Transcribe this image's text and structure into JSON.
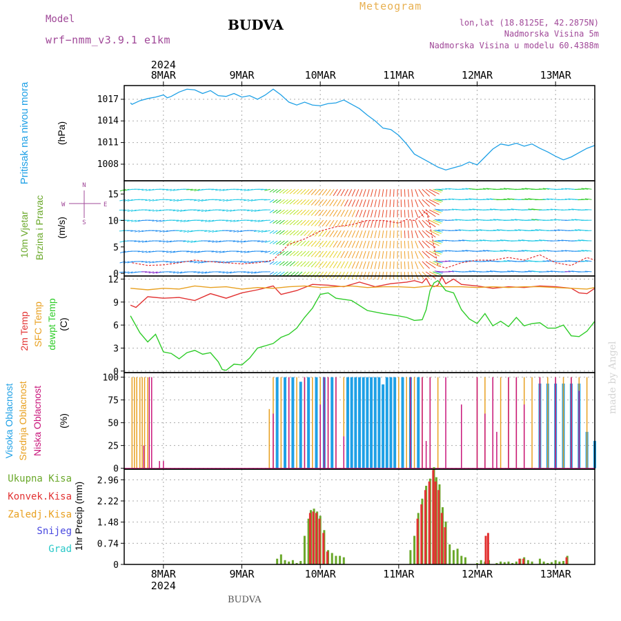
{
  "header": {
    "model_label": "Model",
    "model_name": "wrf−nmm_v3.9.1 e1km",
    "station": "BUDVA",
    "product": "Meteogram",
    "lonlat": "lon,lat (18.8125E, 42.2875N)",
    "altitude": "Nadmorska Visina 5m",
    "model_altitude": "Nadmorska Visina u modelu 60.4388m",
    "watermark": "made by Angel",
    "footer_station": "BUDVA"
  },
  "colors": {
    "pressure": "#1ea0e6",
    "temp2m": "#e23232",
    "sfc_temp": "#e8a020",
    "dewpoint": "#2ecc28",
    "high_cloud": "#1ea0e6",
    "mid_cloud": "#e8a020",
    "low_cloud": "#c8147a",
    "total_precip": "#6aa82a",
    "conv_precip": "#e23232",
    "snow": "#4848e0",
    "grad": "#28c8c8",
    "title": "#a04898",
    "product": "#e8b050"
  },
  "time_axis": {
    "day_labels": [
      "8MAR",
      "9MAR",
      "10MAR",
      "11MAR",
      "12MAR",
      "13MAR"
    ],
    "year": "2024"
  },
  "chart_data": [
    {
      "id": "pressure",
      "type": "line",
      "ylabel": [
        "Pritisak na nivou mora",
        "(hPa)"
      ],
      "yticks": [
        1008,
        1011,
        1014,
        1017
      ],
      "ylim": [
        1005.7,
        1018.9
      ],
      "series": [
        {
          "x": [
            7.58,
            7.6,
            7.7,
            7.8,
            7.9,
            8.0,
            8.05,
            8.1,
            8.2,
            8.3,
            8.4,
            8.5,
            8.6,
            8.7,
            8.8,
            8.9,
            9.0,
            9.1,
            9.2,
            9.3,
            9.4,
            9.5,
            9.6,
            9.7,
            9.8,
            9.9,
            10.0,
            10.1,
            10.2,
            10.3,
            10.4,
            10.5,
            10.6,
            10.7,
            10.8,
            10.9,
            11.0,
            11.1,
            11.2,
            11.3,
            11.4,
            11.5,
            11.6,
            11.7,
            11.8,
            11.9,
            12.0,
            12.1,
            12.2,
            12.3,
            12.4,
            12.5,
            12.6,
            12.7,
            12.8,
            12.9,
            13.0,
            13.1,
            13.2,
            13.3,
            13.4,
            13.5
          ],
          "y": [
            1016.5,
            1016.3,
            1016.8,
            1017.1,
            1017.3,
            1017.6,
            1017.2,
            1017.4,
            1018.0,
            1018.4,
            1018.3,
            1017.8,
            1018.2,
            1017.5,
            1017.4,
            1017.8,
            1017.3,
            1017.5,
            1017.0,
            1017.6,
            1018.4,
            1017.6,
            1016.6,
            1016.2,
            1016.6,
            1016.2,
            1016.1,
            1016.4,
            1016.5,
            1016.9,
            1016.3,
            1015.7,
            1014.8,
            1014.0,
            1013.0,
            1012.8,
            1012.0,
            1010.8,
            1009.4,
            1008.8,
            1008.2,
            1007.6,
            1007.2,
            1007.5,
            1007.8,
            1008.3,
            1007.9,
            1009.0,
            1010.1,
            1010.8,
            1010.6,
            1010.9,
            1010.5,
            1010.8,
            1010.2,
            1009.7,
            1009.1,
            1008.6,
            1009.0,
            1009.6,
            1010.2,
            1010.6
          ]
        }
      ]
    },
    {
      "id": "wind",
      "type": "barbs",
      "ylabel": [
        "10m Vjetar",
        "Brzina i Pravac",
        "(m/s)"
      ],
      "compass": [
        "N",
        "W",
        "E",
        "S"
      ],
      "yticks": [
        0,
        5,
        10,
        15
      ],
      "ylim": [
        -0.5,
        17.5
      ],
      "wind_speed": {
        "x": [
          7.6,
          7.8,
          8.0,
          8.2,
          8.4,
          8.6,
          8.8,
          9.0,
          9.2,
          9.4,
          9.5,
          9.6,
          9.8,
          10.0,
          10.2,
          10.4,
          10.6,
          10.8,
          11.0,
          11.1,
          11.2,
          11.3,
          11.35,
          11.4,
          11.45,
          11.5,
          11.6,
          11.8,
          12.0,
          12.2,
          12.4,
          12.6,
          12.8,
          13.0,
          13.2,
          13.4,
          13.5
        ],
        "y": [
          2.0,
          1.5,
          1.6,
          2.0,
          2.5,
          2.2,
          2.0,
          1.8,
          2.0,
          2.5,
          4.0,
          5.5,
          6.5,
          8.0,
          8.8,
          9.2,
          10.0,
          10.0,
          9.5,
          10.2,
          10.0,
          11.0,
          12.0,
          9.0,
          5.0,
          1.5,
          1.0,
          2.0,
          2.5,
          2.5,
          3.0,
          2.5,
          3.5,
          2.0,
          1.5,
          3.0,
          2.5
        ]
      }
    },
    {
      "id": "temperature",
      "type": "line",
      "ylabel": [
        "2m Temp",
        "SFC Temp",
        "dewpt Temp",
        "(C)"
      ],
      "yticks": [
        0,
        3,
        6,
        9,
        12
      ],
      "ylim": [
        -0.2,
        12.4
      ],
      "series": [
        {
          "key": "temp2m",
          "x": [
            7.58,
            7.65,
            7.8,
            8.0,
            8.2,
            8.4,
            8.6,
            8.8,
            9.0,
            9.2,
            9.4,
            9.5,
            9.7,
            9.9,
            10.1,
            10.3,
            10.5,
            10.7,
            10.9,
            11.1,
            11.2,
            11.3,
            11.35,
            11.4,
            11.45,
            11.5,
            11.55,
            11.6,
            11.7,
            11.8,
            12.0,
            12.2,
            12.4,
            12.6,
            12.8,
            13.0,
            13.2,
            13.3,
            13.4,
            13.5
          ],
          "y": [
            8.6,
            8.3,
            9.7,
            9.5,
            9.6,
            9.2,
            10.1,
            9.5,
            10.2,
            10.6,
            11.1,
            10.0,
            10.5,
            11.3,
            11.2,
            11.0,
            11.6,
            11.0,
            11.4,
            11.6,
            11.8,
            11.5,
            12.1,
            11.2,
            11.0,
            11.2,
            12.3,
            11.4,
            12.0,
            11.3,
            11.1,
            10.8,
            11.0,
            10.9,
            11.1,
            11.0,
            10.8,
            10.2,
            10.1,
            10.8
          ]
        },
        {
          "key": "sfc_temp",
          "x": [
            7.58,
            7.8,
            8.0,
            8.2,
            8.4,
            8.6,
            8.8,
            9.0,
            9.2,
            9.4,
            9.6,
            9.8,
            10.0,
            10.2,
            10.4,
            10.6,
            10.8,
            11.0,
            11.2,
            11.4,
            11.6,
            11.8,
            12.0,
            12.2,
            12.4,
            12.6,
            12.8,
            13.0,
            13.2,
            13.4,
            13.5
          ],
          "y": [
            10.8,
            10.6,
            10.8,
            10.7,
            11.1,
            10.9,
            11.0,
            10.7,
            10.9,
            10.8,
            11.0,
            11.1,
            10.9,
            11.0,
            11.1,
            10.9,
            11.0,
            11.0,
            10.9,
            11.1,
            11.0,
            11.0,
            10.9,
            11.0,
            10.9,
            11.0,
            11.0,
            10.9,
            10.8,
            10.7,
            10.9
          ]
        },
        {
          "key": "dewpoint",
          "x": [
            7.58,
            7.7,
            7.8,
            7.9,
            8.0,
            8.1,
            8.2,
            8.3,
            8.4,
            8.5,
            8.6,
            8.7,
            8.75,
            8.8,
            8.9,
            9.0,
            9.1,
            9.2,
            9.3,
            9.4,
            9.5,
            9.6,
            9.7,
            9.8,
            9.9,
            10.0,
            10.1,
            10.2,
            10.4,
            10.6,
            10.8,
            11.0,
            11.1,
            11.2,
            11.3,
            11.35,
            11.4,
            11.45,
            11.5,
            11.6,
            11.7,
            11.8,
            11.9,
            12.0,
            12.1,
            12.2,
            12.3,
            12.4,
            12.5,
            12.6,
            12.7,
            12.8,
            12.9,
            13.0,
            13.1,
            13.2,
            13.3,
            13.4,
            13.5
          ],
          "y": [
            7.2,
            5.0,
            3.8,
            4.8,
            2.5,
            2.3,
            1.6,
            2.4,
            2.7,
            2.2,
            2.4,
            1.2,
            0.2,
            0.1,
            0.9,
            0.8,
            1.7,
            3.0,
            3.3,
            3.6,
            4.4,
            4.8,
            5.6,
            7.0,
            8.2,
            10.0,
            10.2,
            9.5,
            9.2,
            7.9,
            7.5,
            7.2,
            7.0,
            6.6,
            6.7,
            8.0,
            10.5,
            11.5,
            11.8,
            10.5,
            10.2,
            8.0,
            6.8,
            6.2,
            7.5,
            5.9,
            6.5,
            5.8,
            7.0,
            5.9,
            6.2,
            6.3,
            5.6,
            5.6,
            6.0,
            4.6,
            4.5,
            5.2,
            6.5
          ]
        }
      ]
    },
    {
      "id": "cloud",
      "type": "bar",
      "ylabel": [
        "Visoka Oblacnost",
        "Srednja Oblacnost",
        "Niska Oblacnost",
        "(%)"
      ],
      "yticks": [
        0,
        25,
        50,
        75,
        100
      ],
      "ylim": [
        -1,
        105
      ],
      "series": [
        {
          "key": "high",
          "name": "Visoka Oblacnost",
          "x": [
            9.45,
            9.55,
            9.65,
            9.75,
            9.85,
            9.95,
            10.05,
            10.15,
            10.35,
            10.4,
            10.45,
            10.5,
            10.55,
            10.6,
            10.65,
            10.7,
            10.75,
            10.8,
            10.85,
            10.9,
            10.95,
            11.05,
            11.15,
            11.25,
            12.8,
            12.9,
            13.0,
            13.1,
            13.2,
            13.3,
            13.4,
            13.5
          ],
          "y": [
            100,
            100,
            100,
            95,
            100,
            100,
            100,
            100,
            100,
            100,
            100,
            100,
            100,
            100,
            100,
            100,
            100,
            92,
            100,
            100,
            100,
            100,
            100,
            100,
            93,
            93,
            93,
            93,
            93,
            93,
            40,
            30
          ]
        },
        {
          "key": "mid",
          "name": "Srednja Oblacnost",
          "x": [
            7.6,
            7.63,
            7.66,
            7.7,
            7.73,
            7.76,
            7.8,
            9.35,
            9.4,
            9.5,
            9.6,
            9.7,
            9.8,
            9.9,
            10.0,
            10.1,
            10.2,
            10.3,
            11.0,
            11.1,
            11.2,
            11.3,
            11.4,
            11.5,
            12.0,
            12.1,
            12.2,
            12.3,
            12.4,
            12.5,
            12.6,
            12.7,
            12.8,
            12.9,
            13.0,
            13.1,
            13.2,
            13.3,
            13.4
          ],
          "y": [
            100,
            100,
            100,
            100,
            100,
            100,
            100,
            65,
            100,
            100,
            100,
            100,
            100,
            100,
            100,
            100,
            100,
            100,
            100,
            100,
            100,
            100,
            100,
            100,
            100,
            100,
            100,
            100,
            100,
            100,
            100,
            100,
            100,
            100,
            100,
            100,
            100,
            100,
            100
          ]
        },
        {
          "key": "low",
          "name": "Niska Oblacnost",
          "x": [
            7.75,
            7.82,
            7.85,
            7.95,
            8.0,
            9.4,
            9.6,
            9.8,
            10.0,
            10.05,
            10.1,
            10.2,
            10.3,
            11.15,
            11.3,
            11.35,
            11.4,
            11.6,
            11.8,
            12.0,
            12.1,
            12.2,
            12.25,
            12.4,
            12.5,
            12.6,
            12.8,
            13.0,
            13.2,
            13.3
          ],
          "y": [
            25,
            100,
            100,
            8,
            8,
            60,
            100,
            100,
            70,
            100,
            100,
            100,
            35,
            100,
            100,
            30,
            100,
            100,
            70,
            100,
            60,
            100,
            40,
            100,
            100,
            70,
            100,
            100,
            100,
            85
          ]
        }
      ]
    },
    {
      "id": "precip",
      "type": "bar",
      "ylabel": [
        "1hr Precip (mm)"
      ],
      "legend": [
        "Ukupna Kisa",
        "Konvek.Kisa",
        "Zaledj.Kisa",
        "Snijeg",
        "Grad"
      ],
      "yticks": [
        0,
        0.74,
        1.48,
        2.22,
        2.96
      ],
      "ylim": [
        0,
        3.33
      ],
      "series": [
        {
          "key": "total",
          "name": "Ukupna Kisa",
          "x": [
            9.45,
            9.5,
            9.55,
            9.6,
            9.65,
            9.7,
            9.75,
            9.8,
            9.85,
            9.88,
            9.92,
            9.96,
            10.0,
            10.05,
            10.1,
            10.15,
            10.2,
            10.25,
            10.3,
            11.15,
            11.2,
            11.25,
            11.3,
            11.35,
            11.4,
            11.45,
            11.48,
            11.52,
            11.56,
            11.6,
            11.65,
            11.7,
            11.75,
            11.8,
            11.85,
            12.0,
            12.05,
            12.1,
            12.15,
            12.25,
            12.3,
            12.35,
            12.4,
            12.45,
            12.5,
            12.55,
            12.6,
            12.65,
            12.7,
            12.8,
            12.85,
            12.9,
            12.95,
            13.0,
            13.05,
            13.1,
            13.15
          ],
          "y": [
            0.2,
            0.35,
            0.15,
            0.1,
            0.15,
            0.05,
            0.12,
            1.0,
            1.6,
            1.9,
            1.95,
            1.85,
            1.7,
            1.2,
            0.5,
            0.4,
            0.3,
            0.3,
            0.25,
            0.5,
            1.0,
            1.8,
            2.3,
            2.75,
            3.0,
            3.4,
            3.05,
            2.8,
            2.0,
            1.5,
            0.7,
            0.5,
            0.55,
            0.3,
            0.25,
            0.05,
            0.15,
            0.1,
            0.15,
            0.05,
            0.1,
            0.08,
            0.1,
            0.05,
            0.1,
            0.2,
            0.25,
            0.15,
            0.1,
            0.2,
            0.1,
            0.05,
            0.08,
            0.15,
            0.1,
            0.12,
            0.3
          ]
        },
        {
          "key": "conv",
          "name": "Konvek.Kisa",
          "x": [
            9.87,
            9.91,
            9.95,
            9.99,
            10.04,
            10.09,
            11.24,
            11.29,
            11.34,
            11.39,
            11.44,
            11.47,
            11.51,
            11.55,
            11.59,
            12.11,
            12.14,
            12.54,
            12.59,
            13.14
          ],
          "y": [
            1.8,
            1.85,
            1.8,
            1.6,
            1.1,
            0.45,
            1.6,
            2.1,
            2.6,
            2.9,
            3.3,
            2.9,
            2.6,
            1.8,
            1.3,
            1.0,
            1.1,
            0.2,
            0.2,
            0.25
          ]
        }
      ]
    }
  ]
}
